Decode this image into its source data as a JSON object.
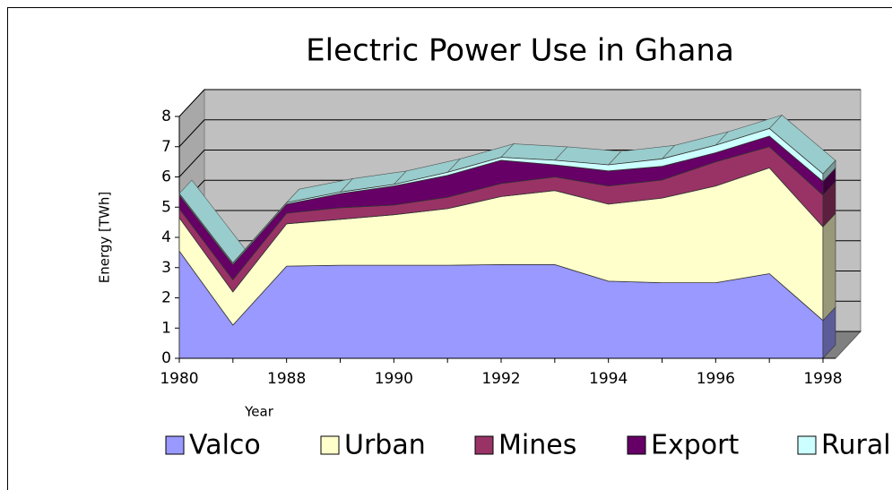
{
  "chart_data": {
    "type": "area",
    "stacked": true,
    "title": "Electric Power Use in Ghana",
    "x_label": "Year",
    "y_label": "Energy [TWh]",
    "categories": [
      "1980",
      null,
      "1988",
      null,
      "1990",
      null,
      "1992",
      null,
      "1994",
      null,
      "1996",
      null,
      "1998"
    ],
    "series": [
      {
        "name": "Valco",
        "color": "#9999ff",
        "values": [
          3.55,
          1.1,
          3.05,
          3.08,
          3.08,
          3.08,
          3.1,
          3.1,
          2.55,
          2.5,
          2.5,
          2.8,
          1.25
        ]
      },
      {
        "name": "Urban",
        "color": "#ffffcc",
        "values": [
          1.1,
          1.1,
          1.4,
          1.52,
          1.67,
          1.87,
          2.25,
          2.45,
          2.55,
          2.8,
          3.2,
          3.5,
          3.1
        ]
      },
      {
        "name": "Mines",
        "color": "#993366",
        "values": [
          0.3,
          0.4,
          0.35,
          0.38,
          0.32,
          0.38,
          0.43,
          0.45,
          0.6,
          0.6,
          0.8,
          0.7,
          1.05
        ]
      },
      {
        "name": "Export",
        "color": "#660066",
        "values": [
          0.45,
          0.5,
          0.3,
          0.47,
          0.63,
          0.72,
          0.77,
          0.4,
          0.5,
          0.45,
          0.3,
          0.35,
          0.45
        ]
      },
      {
        "name": "Rural",
        "color": "#ccffff",
        "values": [
          0.05,
          0.05,
          0.05,
          0.05,
          0.05,
          0.1,
          0.1,
          0.15,
          0.2,
          0.25,
          0.25,
          0.25,
          0.25
        ]
      }
    ],
    "ylim": [
      0,
      8
    ],
    "yticks": [
      0,
      1,
      2,
      3,
      4,
      5,
      6,
      7,
      8
    ],
    "grid": true,
    "legend": "bottom"
  }
}
